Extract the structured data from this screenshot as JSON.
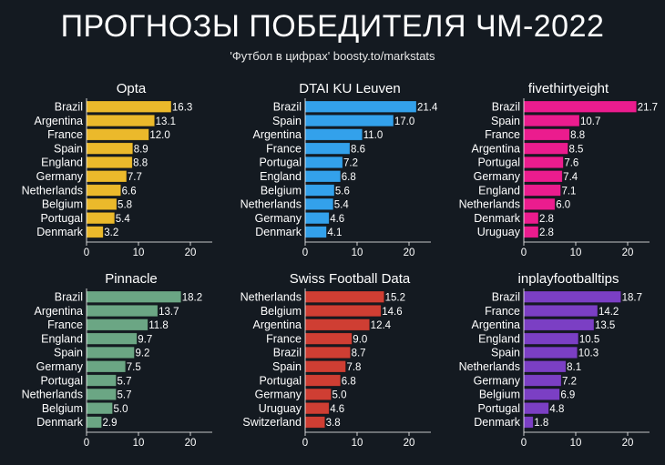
{
  "title": "ПРОГНОЗЫ ПОБЕДИТЕЛЯ ЧМ-2022",
  "subtitle": "'Футбол в цифрах' boosty.to/markstats",
  "chart_data": [
    {
      "type": "bar",
      "orientation": "horizontal",
      "title": "Opta",
      "color": "#ebb92b",
      "categories": [
        "Brazil",
        "Argentina",
        "France",
        "Spain",
        "England",
        "Germany",
        "Netherlands",
        "Belgium",
        "Portugal",
        "Denmark"
      ],
      "values": [
        16.3,
        13.1,
        12.0,
        8.9,
        8.8,
        7.7,
        6.6,
        5.8,
        5.4,
        3.2
      ],
      "xticks": [
        0,
        10,
        20
      ],
      "xlim": [
        0,
        24
      ]
    },
    {
      "type": "bar",
      "orientation": "horizontal",
      "title": "DTAI KU Leuven",
      "color": "#33a1eb",
      "categories": [
        "Brazil",
        "Spain",
        "Argentina",
        "France",
        "Portugal",
        "England",
        "Belgium",
        "Netherlands",
        "Germany",
        "Denmark"
      ],
      "values": [
        21.4,
        17.0,
        11.0,
        8.6,
        7.2,
        6.8,
        5.6,
        5.4,
        4.6,
        4.1
      ],
      "xticks": [
        0,
        10,
        20
      ],
      "xlim": [
        0,
        24
      ]
    },
    {
      "type": "bar",
      "orientation": "horizontal",
      "title": "fivethirtyeight",
      "color": "#eb1c8e",
      "categories": [
        "Brazil",
        "Spain",
        "France",
        "Argentina",
        "Portugal",
        "Germany",
        "England",
        "Netherlands",
        "Denmark",
        "Uruguay"
      ],
      "values": [
        21.7,
        10.7,
        8.8,
        8.5,
        7.6,
        7.4,
        7.1,
        6.0,
        2.8,
        2.8
      ],
      "xticks": [
        0,
        10,
        20
      ],
      "xlim": [
        0,
        24
      ]
    },
    {
      "type": "bar",
      "orientation": "horizontal",
      "title": "Pinnacle",
      "color": "#6ba684",
      "categories": [
        "Brazil",
        "Argentina",
        "France",
        "England",
        "Spain",
        "Germany",
        "Portugal",
        "Netherlands",
        "Belgium",
        "Denmark"
      ],
      "values": [
        18.2,
        13.7,
        11.8,
        9.7,
        9.2,
        7.5,
        5.7,
        5.7,
        5.0,
        2.9
      ],
      "xticks": [
        0,
        10,
        20
      ],
      "xlim": [
        0,
        24
      ]
    },
    {
      "type": "bar",
      "orientation": "horizontal",
      "title": "Swiss Football Data",
      "color": "#cf3e33",
      "categories": [
        "Netherlands",
        "Belgium",
        "Argentina",
        "France",
        "Brazil",
        "Spain",
        "Portugal",
        "Germany",
        "Uruguay",
        "Switzerland"
      ],
      "values": [
        15.2,
        14.6,
        12.4,
        9.0,
        8.7,
        7.8,
        6.8,
        5.0,
        4.6,
        3.8
      ],
      "xticks": [
        0,
        10,
        20
      ],
      "xlim": [
        0,
        24
      ]
    },
    {
      "type": "bar",
      "orientation": "horizontal",
      "title": "inplayfootballtips",
      "color": "#7b3fc4",
      "categories": [
        "Brazil",
        "France",
        "Argentina",
        "England",
        "Spain",
        "Netherlands",
        "Germany",
        "Belgium",
        "Portugal",
        "Denmark"
      ],
      "values": [
        18.7,
        14.2,
        13.5,
        10.5,
        10.3,
        8.1,
        7.2,
        6.9,
        4.8,
        1.8
      ],
      "xticks": [
        0,
        10,
        20
      ],
      "xlim": [
        0,
        24
      ]
    }
  ]
}
